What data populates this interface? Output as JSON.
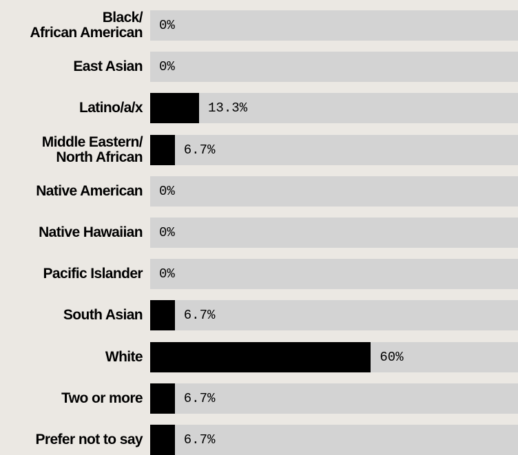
{
  "chart_data": {
    "type": "bar",
    "orientation": "horizontal",
    "categories": [
      "Black/\nAfrican American",
      "East Asian",
      "Latino/a/x",
      "Middle Eastern/\nNorth African",
      "Native American",
      "Native Hawaiian",
      "Pacific Islander",
      "South Asian",
      "White",
      "Two or more",
      "Prefer not to say"
    ],
    "values": [
      0,
      0,
      13.3,
      6.7,
      0,
      0,
      0,
      6.7,
      60,
      6.7,
      6.7
    ],
    "value_labels": [
      "0%",
      "0%",
      "13.3%",
      "6.7%",
      "0%",
      "0%",
      "0%",
      "6.7%",
      "60%",
      "6.7%",
      "6.7%"
    ],
    "xlim": [
      0,
      100
    ],
    "title": "",
    "xlabel": "",
    "ylabel": "",
    "grid": false,
    "colors": {
      "background": "#ebe8e3",
      "track": "#d3d3d3",
      "bar": "#000000",
      "text": "#000000"
    }
  }
}
